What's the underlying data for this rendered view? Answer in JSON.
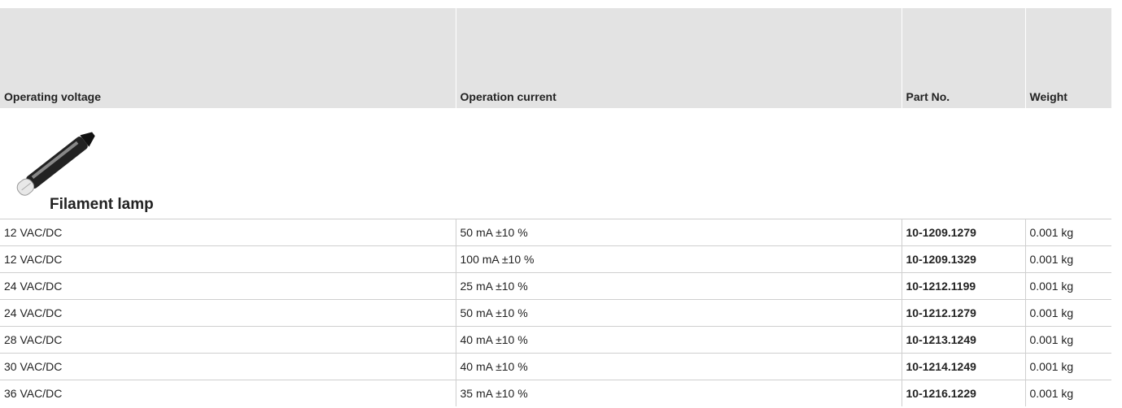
{
  "table": {
    "header": [
      "Operating voltage",
      "Operation current",
      "Part No.",
      "Weight"
    ],
    "section": "Filament lamp",
    "rows": [
      [
        "12 VAC/DC",
        "50 mA ±10 %",
        "10-1209.1279",
        "0.001 kg"
      ],
      [
        "12 VAC/DC",
        "100 mA ±10 %",
        "10-1209.1329",
        "0.001 kg"
      ],
      [
        "24 VAC/DC",
        "25 mA ±10 %",
        "10-1212.1199",
        "0.001 kg"
      ],
      [
        "24 VAC/DC",
        "50 mA ±10 %",
        "10-1212.1279",
        "0.001 kg"
      ],
      [
        "28 VAC/DC",
        "40 mA ±10 %",
        "10-1213.1249",
        "0.001 kg"
      ],
      [
        "30 VAC/DC",
        "40 mA ±10 %",
        "10-1214.1249",
        "0.001 kg"
      ],
      [
        "36 VAC/DC",
        "35 mA ±10 %",
        "10-1216.1229",
        "0.001 kg"
      ]
    ]
  }
}
